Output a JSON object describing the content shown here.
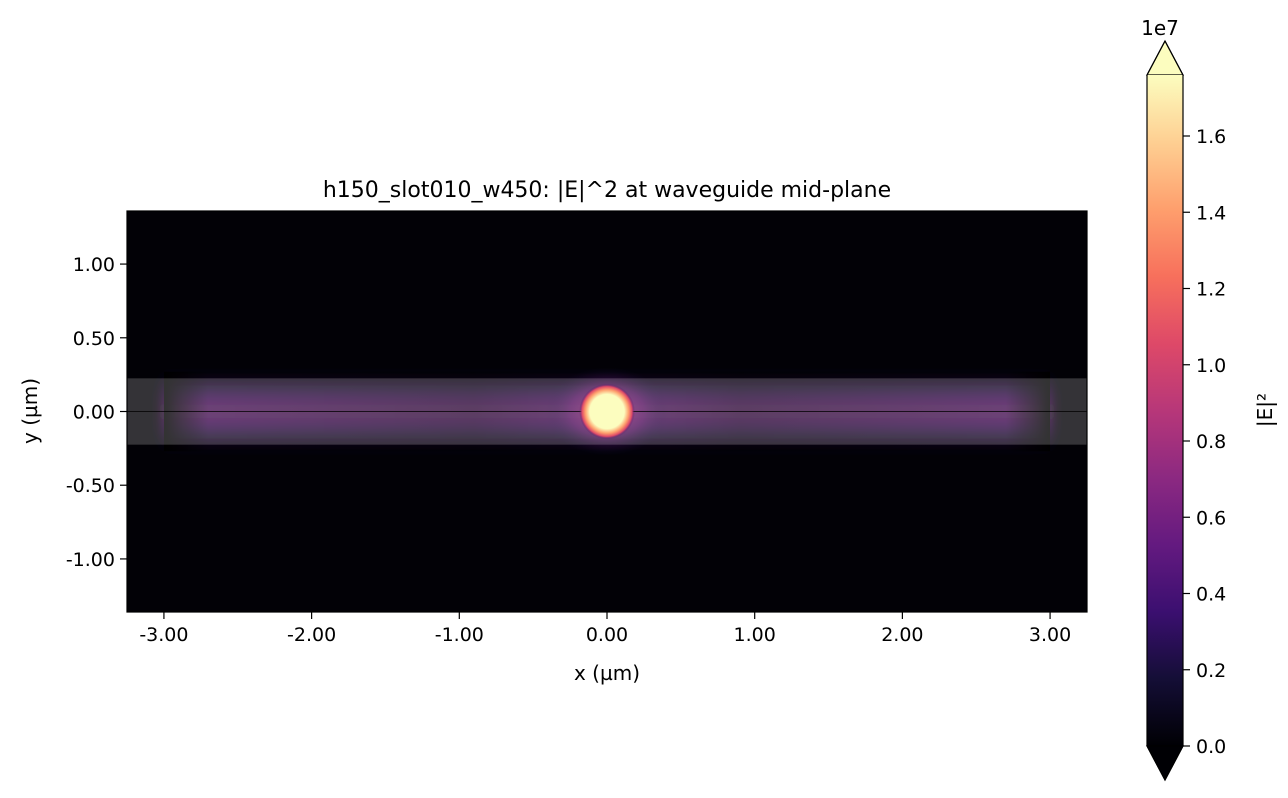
{
  "chart_data": [
    {
      "type": "heatmap",
      "title": "h150_slot010_w450: |E|^2 at waveguide mid-plane",
      "xlabel": "x (µm)",
      "ylabel": "y (µm)",
      "xlim": [
        -3.25,
        3.25
      ],
      "ylim": [
        -1.36,
        1.36
      ],
      "x_ticks": [
        -3.0,
        -2.0,
        -1.0,
        0.0,
        1.0,
        2.0,
        3.0
      ],
      "x_tick_labels": [
        "-3.00",
        "-2.00",
        "-1.00",
        "0.00",
        "1.00",
        "2.00",
        "3.00"
      ],
      "y_ticks": [
        1.0,
        0.5,
        0.0,
        -0.5,
        -1.0
      ],
      "y_tick_labels": [
        "1.00",
        "0.50",
        "0.00",
        "-0.50",
        "-1.00"
      ],
      "colormap": "magma",
      "grid": false,
      "waveguide": {
        "x_range": [
          -3.25,
          3.25
        ],
        "y_range": [
          -0.225,
          0.225
        ],
        "overlay_color": "#ffffff",
        "overlay_opacity": 0.2
      },
      "slot": {
        "x_range": [
          -3.0,
          3.0
        ],
        "y": 0.0
      },
      "field_features": {
        "hotspot_center": [
          0.0,
          0.0
        ],
        "hotspot_radius_um": 0.13,
        "hotspot_peak": 17600000,
        "mode_x_extent": [
          -3.0,
          3.0
        ],
        "mode_y_halfwidth_um": 0.27
      },
      "colorbar": {
        "label": "|E|²",
        "multiplier_label": "1e7",
        "range": [
          0,
          17600000
        ],
        "ticks": [
          0,
          0.2,
          0.4,
          0.6,
          0.8,
          1.0,
          1.2,
          1.4,
          1.6
        ],
        "tick_labels": [
          "0.0",
          "0.2",
          "0.4",
          "0.6",
          "0.8",
          "1.0",
          "1.2",
          "1.4",
          "1.6"
        ],
        "extend": "both",
        "extend_colors": [
          "#000004",
          "#fcfdbf"
        ]
      }
    }
  ]
}
